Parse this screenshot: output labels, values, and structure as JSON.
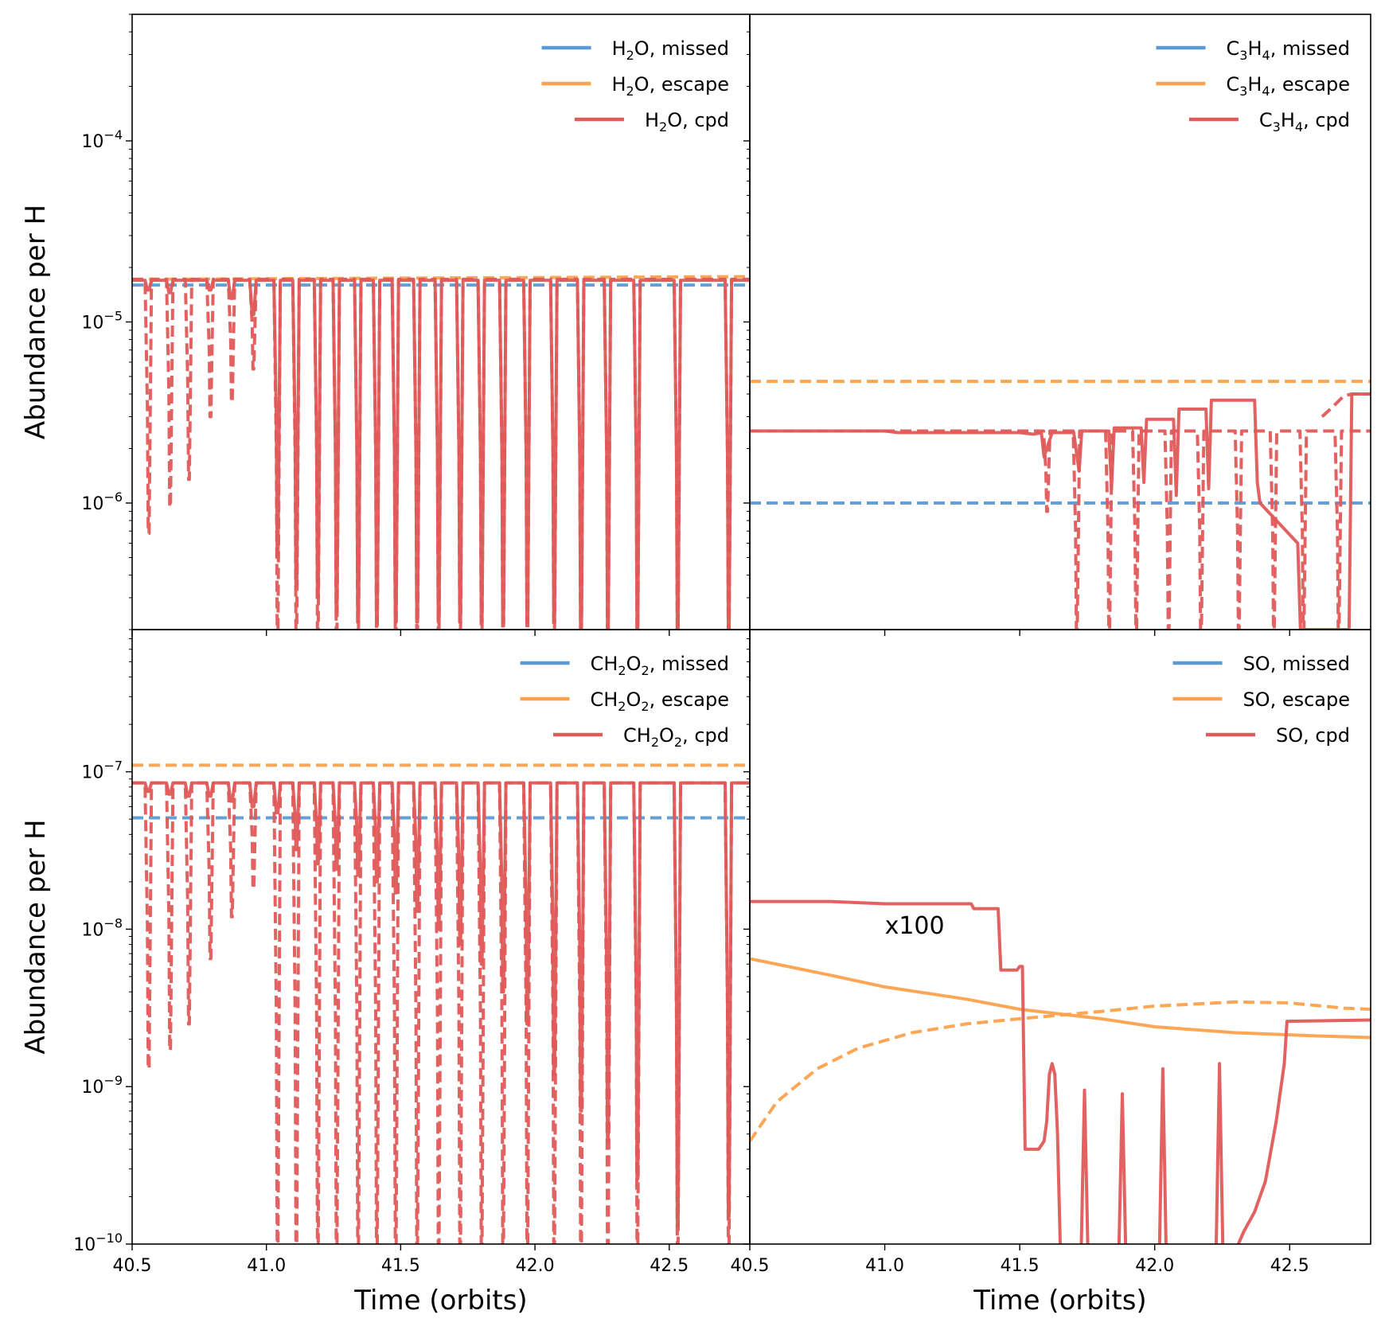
{
  "colors": {
    "missed": "#5b9bd5",
    "escape": "#fca14d",
    "cpd": "#e05a5a",
    "frame": "#000000"
  },
  "chart_data": [
    {
      "type": "line",
      "panel": "top-left",
      "ylabel": "Abundance per H",
      "xlabel": "",
      "xlim": [
        40.5,
        42.8
      ],
      "ylim": [
        2e-07,
        0.0005
      ],
      "yscale": "log",
      "xticks": [
        40.5,
        41.0,
        41.5,
        42.0,
        42.5
      ],
      "xtick_labels": [],
      "yticks": [
        1e-06,
        1e-05,
        0.0001
      ],
      "ytick_labels": [
        {
          "base": "10",
          "exp": "−6"
        },
        {
          "base": "10",
          "exp": "−5"
        },
        {
          "base": "10",
          "exp": "−4"
        }
      ],
      "legend_position": "upper right",
      "legend": [
        {
          "key": "missed",
          "parts": [
            {
              "t": "H"
            },
            {
              "t": "2",
              "sub": true
            },
            {
              "t": "O, missed"
            }
          ]
        },
        {
          "key": "escape",
          "parts": [
            {
              "t": "H"
            },
            {
              "t": "2",
              "sub": true
            },
            {
              "t": "O, escape"
            }
          ]
        },
        {
          "key": "cpd",
          "parts": [
            {
              "t": "H"
            },
            {
              "t": "2",
              "sub": true
            },
            {
              "t": "O, cpd"
            }
          ]
        }
      ],
      "lines": [
        {
          "key": "missed",
          "dash": true,
          "x": [
            40.5,
            42.8
          ],
          "y": [
            1.6e-05,
            1.6e-05
          ]
        },
        {
          "key": "escape",
          "dash": true,
          "x": [
            40.5,
            42.8
          ],
          "y": [
            1.72e-05,
            1.78e-05
          ]
        }
      ],
      "spikes": {
        "solid_base": 1.7e-05,
        "dash_base": 1.72e-05,
        "solid": [
          [
            40.56,
            1.5e-05
          ],
          [
            40.64,
            1.45e-05
          ],
          [
            40.79,
            1.5e-05
          ],
          [
            40.87,
            1.35e-05
          ],
          [
            40.95,
            1.1e-05
          ],
          [
            41.04,
            5e-07
          ],
          [
            41.11,
            3.5e-07
          ],
          [
            41.19,
            3e-07
          ],
          [
            41.26,
            2.5e-07
          ],
          [
            41.34,
            2.2e-07
          ],
          [
            41.41,
            2.2e-07
          ],
          [
            41.48,
            2.2e-07
          ],
          [
            41.56,
            2.2e-07
          ],
          [
            41.64,
            2.2e-07
          ],
          [
            41.72,
            2.2e-07
          ],
          [
            41.8,
            2.2e-07
          ],
          [
            41.88,
            2.2e-07
          ],
          [
            41.97,
            2.2e-07
          ],
          [
            42.07,
            2.2e-07
          ],
          [
            42.17,
            2e-07
          ],
          [
            42.27,
            2e-07
          ],
          [
            42.38,
            2e-07
          ],
          [
            42.53,
            2e-07
          ],
          [
            42.72,
            2e-07
          ]
        ],
        "dashed": [
          [
            40.56,
            6.8e-07
          ],
          [
            40.64,
            9.5e-07
          ],
          [
            40.71,
            1.35e-06
          ],
          [
            40.79,
            3e-06
          ],
          [
            40.87,
            3.6e-06
          ],
          [
            40.95,
            5.5e-06
          ],
          [
            41.04,
            2e-07
          ],
          [
            41.11,
            2e-07
          ],
          [
            41.19,
            2e-07
          ],
          [
            41.26,
            2e-07
          ],
          [
            41.34,
            2e-07
          ],
          [
            41.41,
            2e-07
          ],
          [
            41.48,
            2e-07
          ],
          [
            41.56,
            2e-07
          ],
          [
            41.64,
            2e-07
          ],
          [
            41.72,
            2e-07
          ],
          [
            41.8,
            2e-07
          ],
          [
            41.88,
            2e-07
          ],
          [
            41.97,
            2e-07
          ],
          [
            42.07,
            2e-07
          ],
          [
            42.17,
            2e-07
          ],
          [
            42.27,
            2e-07
          ],
          [
            42.38,
            2e-07
          ],
          [
            42.53,
            2e-07
          ],
          [
            42.72,
            2e-07
          ]
        ]
      },
      "annotation": ""
    },
    {
      "type": "line",
      "panel": "top-right",
      "ylabel": "",
      "xlabel": "",
      "xlim": [
        40.5,
        42.8
      ],
      "ylim": [
        2e-07,
        0.0005
      ],
      "yscale": "log",
      "xticks": [
        40.5,
        41.0,
        41.5,
        42.0,
        42.5
      ],
      "xtick_labels": [],
      "yticks": [
        1e-06,
        1e-05,
        0.0001
      ],
      "ytick_labels": [],
      "legend_position": "upper right",
      "legend": [
        {
          "key": "missed",
          "parts": [
            {
              "t": "C"
            },
            {
              "t": "3",
              "sub": true
            },
            {
              "t": "H"
            },
            {
              "t": "4",
              "sub": true
            },
            {
              "t": ", missed"
            }
          ]
        },
        {
          "key": "escape",
          "parts": [
            {
              "t": "C"
            },
            {
              "t": "3",
              "sub": true
            },
            {
              "t": "H"
            },
            {
              "t": "4",
              "sub": true
            },
            {
              "t": ", escape"
            }
          ]
        },
        {
          "key": "cpd",
          "parts": [
            {
              "t": "C"
            },
            {
              "t": "3",
              "sub": true
            },
            {
              "t": "H"
            },
            {
              "t": "4",
              "sub": true
            },
            {
              "t": ", cpd"
            }
          ]
        }
      ],
      "lines": [
        {
          "key": "missed",
          "dash": true,
          "x": [
            40.5,
            42.8
          ],
          "y": [
            1e-06,
            1e-06
          ]
        },
        {
          "key": "escape",
          "dash": true,
          "x": [
            40.5,
            42.8
          ],
          "y": [
            4.7e-06,
            4.7e-06
          ]
        },
        {
          "key": "cpd",
          "dash": false,
          "x": [
            40.5,
            41.0,
            41.05,
            41.5,
            41.55,
            41.58,
            41.59,
            41.62,
            41.7,
            41.72,
            41.73,
            41.83,
            41.84,
            41.85,
            41.95,
            41.96,
            41.97,
            42.07,
            42.08,
            42.09,
            42.19,
            42.2,
            42.21,
            42.37,
            42.38,
            42.39,
            42.53,
            42.54,
            42.55,
            42.62,
            42.7,
            42.72,
            42.73,
            42.8
          ],
          "y": [
            2.5e-06,
            2.5e-06,
            2.45e-06,
            2.45e-06,
            2.4e-06,
            2.45e-06,
            1.8e-06,
            2.45e-06,
            2.45e-06,
            1.5e-06,
            2.5e-06,
            2.5e-06,
            1.2e-06,
            2.6e-06,
            2.6e-06,
            1.3e-06,
            2.9e-06,
            2.9e-06,
            1.1e-06,
            3.3e-06,
            3.3e-06,
            1.2e-06,
            3.7e-06,
            3.7e-06,
            1.3e-06,
            1e-06,
            6e-07,
            2e-07,
            2e-07,
            2e-07,
            2e-07,
            2e-07,
            4e-06,
            4e-06
          ]
        },
        {
          "key": "cpd",
          "dash": true,
          "x": [
            42.62,
            42.66,
            42.7,
            42.73,
            42.8
          ],
          "y": [
            3e-06,
            3.4e-06,
            3.9e-06,
            4e-06,
            4e-06
          ]
        }
      ],
      "spikes": {
        "solid_base": null,
        "dash_base": 2.5e-06,
        "solid": [],
        "dashed": [
          [
            41.6,
            9e-07
          ],
          [
            41.71,
            2e-07
          ],
          [
            41.83,
            2e-07
          ],
          [
            41.93,
            2e-07
          ],
          [
            42.05,
            2e-07
          ],
          [
            42.17,
            2e-07
          ],
          [
            42.31,
            2e-07
          ],
          [
            42.44,
            2e-07
          ],
          [
            42.55,
            2e-07
          ],
          [
            42.68,
            2e-07
          ]
        ]
      },
      "annotation": ""
    },
    {
      "type": "line",
      "panel": "bottom-left",
      "ylabel": "Abundance per H",
      "xlabel": "Time (orbits)",
      "xlim": [
        40.5,
        42.8
      ],
      "ylim": [
        1e-10,
        8e-07
      ],
      "yscale": "log",
      "xticks": [
        40.5,
        41.0,
        41.5,
        42.0,
        42.5
      ],
      "xtick_labels": [
        "40.5",
        "41.0",
        "41.5",
        "42.0",
        "42.5"
      ],
      "yticks": [
        1e-10,
        1e-09,
        1e-08,
        1e-07
      ],
      "ytick_labels": [
        {
          "base": "10",
          "exp": "−10"
        },
        {
          "base": "10",
          "exp": "−9"
        },
        {
          "base": "10",
          "exp": "−8"
        },
        {
          "base": "10",
          "exp": "−7"
        }
      ],
      "legend_position": "upper right",
      "legend": [
        {
          "key": "missed",
          "parts": [
            {
              "t": "CH"
            },
            {
              "t": "2",
              "sub": true
            },
            {
              "t": "O"
            },
            {
              "t": "2",
              "sub": true
            },
            {
              "t": ", missed"
            }
          ]
        },
        {
          "key": "escape",
          "parts": [
            {
              "t": "CH"
            },
            {
              "t": "2",
              "sub": true
            },
            {
              "t": "O"
            },
            {
              "t": "2",
              "sub": true
            },
            {
              "t": ", escape"
            }
          ]
        },
        {
          "key": "cpd",
          "parts": [
            {
              "t": "CH"
            },
            {
              "t": "2",
              "sub": true
            },
            {
              "t": "O"
            },
            {
              "t": "2",
              "sub": true
            },
            {
              "t": ", cpd"
            }
          ]
        }
      ],
      "lines": [
        {
          "key": "missed",
          "dash": true,
          "x": [
            40.5,
            42.8
          ],
          "y": [
            5.1e-08,
            5.1e-08
          ]
        },
        {
          "key": "escape",
          "dash": true,
          "x": [
            40.5,
            42.8
          ],
          "y": [
            1.1e-07,
            1.1e-07
          ]
        }
      ],
      "spikes": {
        "solid_base": 8.5e-08,
        "dash_base": 8.5e-08,
        "solid": [
          [
            40.56,
            7.5e-08
          ],
          [
            40.64,
            7.2e-08
          ],
          [
            40.71,
            7e-08
          ],
          [
            40.79,
            7e-08
          ],
          [
            40.87,
            6.5e-08
          ],
          [
            40.95,
            6e-08
          ],
          [
            41.04,
            5.5e-08
          ],
          [
            41.11,
            3.2e-08
          ],
          [
            41.19,
            2.6e-08
          ],
          [
            41.26,
            2.4e-08
          ],
          [
            41.34,
            2.2e-08
          ],
          [
            41.41,
            2e-08
          ],
          [
            41.48,
            1.7e-08
          ],
          [
            41.56,
            1.3e-08
          ],
          [
            41.64,
            1e-08
          ],
          [
            41.72,
            8e-09
          ],
          [
            41.8,
            6e-09
          ],
          [
            41.88,
            4e-09
          ],
          [
            41.97,
            2.5e-09
          ],
          [
            42.07,
            1.2e-09
          ],
          [
            42.17,
            7e-10
          ],
          [
            42.27,
            4.5e-10
          ],
          [
            42.38,
            2.6e-10
          ],
          [
            42.53,
            1.3e-10
          ],
          [
            42.72,
            1.5e-10
          ]
        ],
        "dashed": [
          [
            40.56,
            1.3e-09
          ],
          [
            40.64,
            1.7e-09
          ],
          [
            40.71,
            2.5e-09
          ],
          [
            40.79,
            6.5e-09
          ],
          [
            40.87,
            1.2e-08
          ],
          [
            40.95,
            1.8e-08
          ],
          [
            41.04,
            1e-10
          ],
          [
            41.11,
            1e-10
          ],
          [
            41.19,
            1e-10
          ],
          [
            41.26,
            1e-10
          ],
          [
            41.34,
            1e-10
          ],
          [
            41.41,
            1e-10
          ],
          [
            41.48,
            1e-10
          ],
          [
            41.56,
            1e-10
          ],
          [
            41.64,
            1e-10
          ],
          [
            41.72,
            1e-10
          ],
          [
            41.8,
            1e-10
          ],
          [
            41.88,
            1e-10
          ],
          [
            41.97,
            1e-10
          ],
          [
            42.07,
            1e-10
          ],
          [
            42.17,
            1e-10
          ],
          [
            42.27,
            1e-10
          ],
          [
            42.38,
            1e-10
          ],
          [
            42.53,
            1e-10
          ],
          [
            42.72,
            1e-10
          ]
        ]
      },
      "annotation": ""
    },
    {
      "type": "line",
      "panel": "bottom-right",
      "ylabel": "",
      "xlabel": "Time (orbits)",
      "xlim": [
        40.5,
        42.8
      ],
      "ylim": [
        1e-10,
        8e-07
      ],
      "yscale": "log",
      "xticks": [
        40.5,
        41.0,
        41.5,
        42.0,
        42.5
      ],
      "xtick_labels": [
        "40.5",
        "41.0",
        "41.5",
        "42.0",
        "42.5"
      ],
      "yticks": [
        1e-10,
        1e-09,
        1e-08,
        1e-07
      ],
      "ytick_labels": [],
      "legend_position": "upper right",
      "legend": [
        {
          "key": "missed",
          "parts": [
            {
              "t": "SO, missed"
            }
          ]
        },
        {
          "key": "escape",
          "parts": [
            {
              "t": "SO, escape"
            }
          ]
        },
        {
          "key": "cpd",
          "parts": [
            {
              "t": "SO, cpd"
            }
          ]
        }
      ],
      "lines": [
        {
          "key": "escape",
          "dash": false,
          "x": [
            40.5,
            40.8,
            41.0,
            41.3,
            41.5,
            41.8,
            42.0,
            42.3,
            42.6,
            42.8
          ],
          "y": [
            6.5e-09,
            5.1e-09,
            4.3e-09,
            3.6e-09,
            3.1e-09,
            2.7e-09,
            2.4e-09,
            2.2e-09,
            2.1e-09,
            2.05e-09
          ]
        },
        {
          "key": "escape",
          "dash": true,
          "x": [
            40.5,
            40.6,
            40.75,
            40.9,
            41.1,
            41.3,
            41.5,
            41.8,
            42.0,
            42.3,
            42.5,
            42.7,
            42.8
          ],
          "y": [
            4.5e-10,
            8e-10,
            1.3e-09,
            1.75e-09,
            2.2e-09,
            2.5e-09,
            2.7e-09,
            3e-09,
            3.25e-09,
            3.45e-09,
            3.4e-09,
            3.15e-09,
            3.1e-09
          ]
        },
        {
          "key": "cpd",
          "dash": false,
          "x": [
            40.5,
            40.8,
            41.0,
            41.32,
            41.33,
            41.42,
            41.43,
            41.49,
            41.5,
            41.51,
            41.52,
            41.53,
            41.57,
            41.59,
            41.6,
            41.61,
            41.62,
            41.63,
            41.64,
            41.65
          ],
          "y": [
            1.5e-08,
            1.5e-08,
            1.45e-08,
            1.45e-08,
            1.35e-08,
            1.35e-08,
            5.5e-09,
            5.5e-09,
            5.8e-09,
            5.8e-09,
            4e-10,
            4e-10,
            4e-10,
            4.5e-10,
            6e-10,
            1.2e-09,
            1.4e-09,
            1.2e-09,
            5e-10,
            1e-10
          ]
        },
        {
          "key": "cpd",
          "dash": false,
          "x": [
            42.31,
            42.33,
            42.37,
            42.41,
            42.45,
            42.48,
            42.49,
            42.8
          ],
          "y": [
            1e-10,
            1.2e-10,
            1.6e-10,
            2.5e-10,
            6e-10,
            1.4e-09,
            2.6e-09,
            2.65e-09
          ]
        }
      ],
      "spikes": {
        "solid_base": 1e-10,
        "dash_base": null,
        "solid": [
          [
            41.74,
            9.5e-10
          ],
          [
            41.88,
            9e-10
          ],
          [
            42.03,
            1.3e-09
          ],
          [
            42.24,
            1.4e-09
          ]
        ],
        "dashed": []
      },
      "annotation": "x100"
    }
  ]
}
